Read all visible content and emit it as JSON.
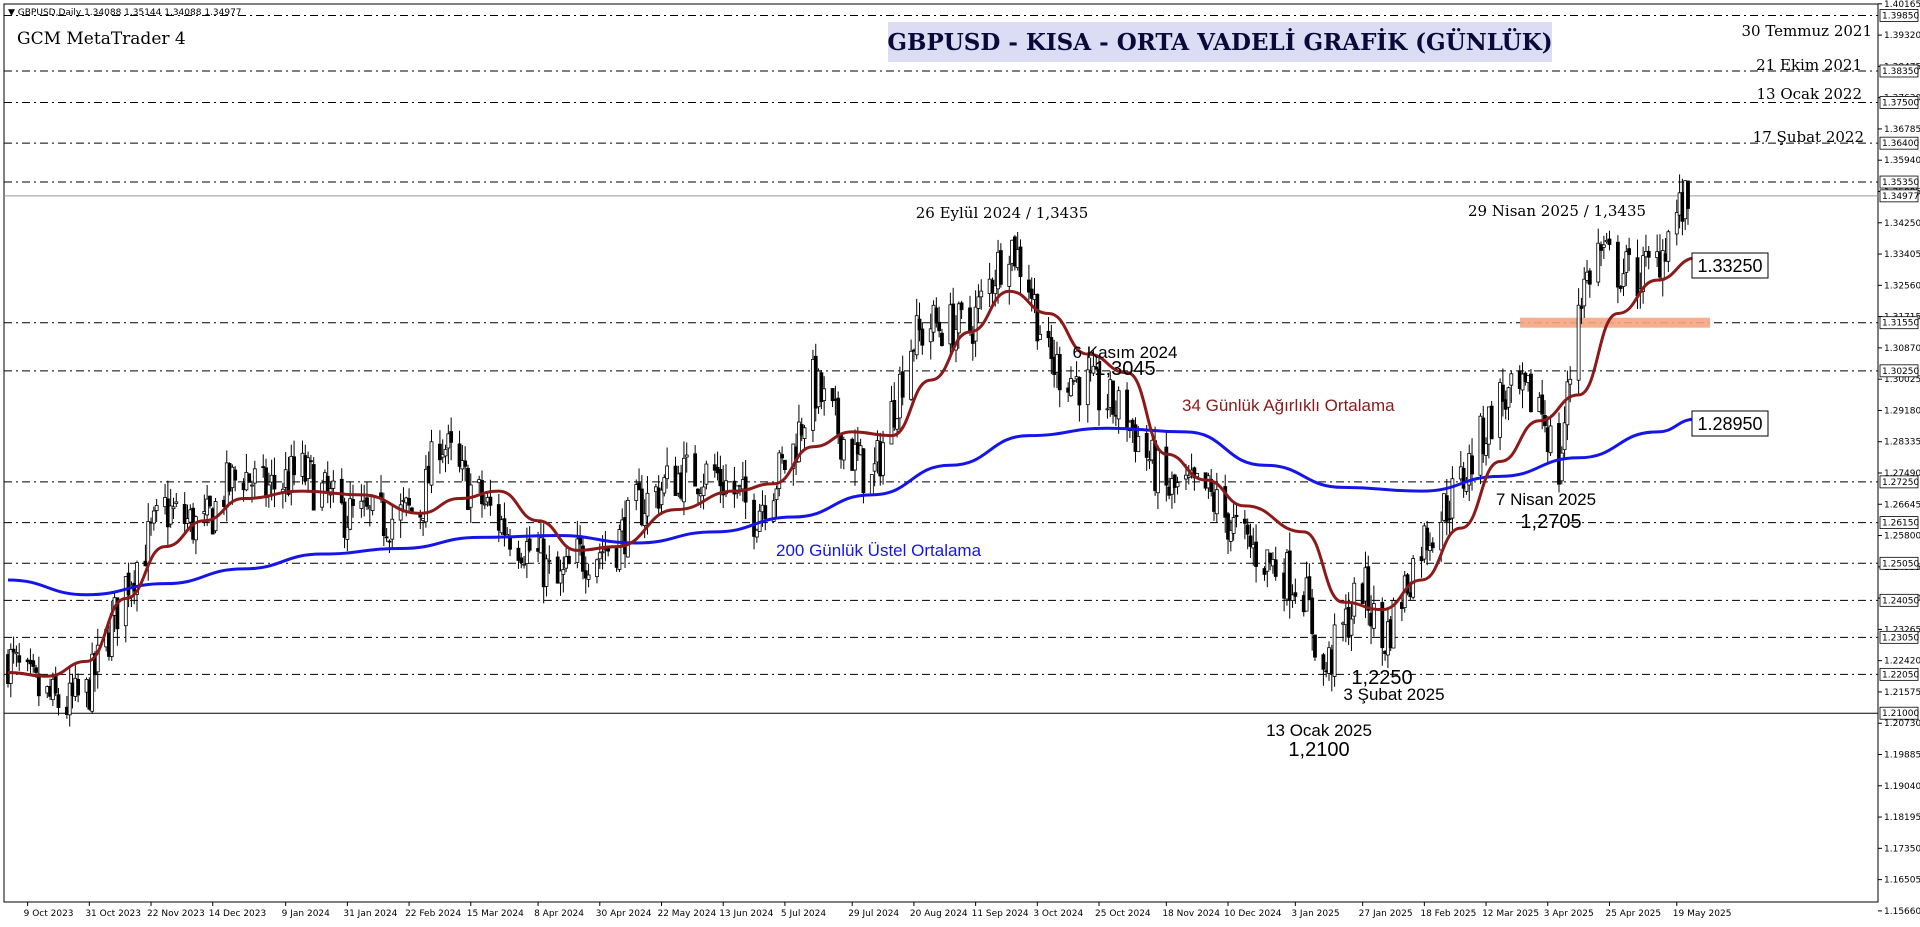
{
  "header": {
    "symbol_line": "▼ GBPUSD,Daily  1.34088 1.35144 1.34088 1.34977",
    "platform": "GCM MetaTrader 4",
    "title": "GBPUSD - KISA - ORTA VADELİ GRAFİK (GÜNLÜK)"
  },
  "colors": {
    "background": "#ffffff",
    "candle": "#000000",
    "ema200": "#1515e8",
    "wma34": "#8b1a1a",
    "zone": "#f4a582",
    "grid_dash": "#000000"
  },
  "chart_data": {
    "type": "candlestick",
    "symbol": "GBPUSD",
    "timeframe": "Daily",
    "ohlc_last": {
      "open": 1.34088,
      "high": 1.35144,
      "low": 1.34088,
      "close": 1.34977
    },
    "ylim": [
      1.159,
      1.4016
    ],
    "y_ticks": [
      "1.40165",
      "1.39320",
      "1.38475",
      "1.37630",
      "1.36785",
      "1.35940",
      "1.35095",
      "1.34250",
      "1.33405",
      "1.32560",
      "1.31715",
      "1.30870",
      "1.30025",
      "1.29180",
      "1.28335",
      "1.27490",
      "1.26645",
      "1.25800",
      "1.24955",
      "1.24110",
      "1.23265",
      "1.22420",
      "1.21575",
      "1.20730",
      "1.19885",
      "1.19040",
      "1.18195",
      "1.17350",
      "1.16505",
      "1.15660"
    ],
    "y_ticks_display": [
      "1.40165",
      "1.39320",
      "1.38475",
      "1.37630",
      "1.36785",
      "1.35940",
      "1.35095",
      "1.34250",
      "1.33405",
      "1.32560",
      "1.31715",
      "1.30870",
      "1.30025",
      "1.29180",
      "1.28335",
      "1.27490",
      "1.26645",
      "1.25800",
      "1.24955",
      "1.24110",
      "1.23265",
      "1.22420",
      "1.21575",
      "1.20730",
      "1.19885",
      "1.19040",
      "1.18195",
      "1.17350",
      "1.16505",
      "1.15660"
    ],
    "x_ticks": [
      "9 Oct 2023",
      "31 Oct 2023",
      "22 Nov 2023",
      "14 Dec 2023",
      "9 Jan 2024",
      "31 Jan 2024",
      "22 Feb 2024",
      "15 Mar 2024",
      "8 Apr 2024",
      "30 Apr 2024",
      "22 May 2024",
      "13 Jun 2024",
      "5 Jul 2024",
      "29 Jul 2024",
      "20 Aug 2024",
      "11 Sep 2024",
      "3 Oct 2024",
      "25 Oct 2024",
      "18 Nov 2024",
      "10 Dec 2024",
      "3 Jan 2025",
      "27 Jan 2025",
      "18 Feb 2025",
      "12 Mar 2025",
      "3 Apr 2025",
      "25 Apr 2025",
      "19 May 2025"
    ],
    "levels": [
      {
        "value": 1.3985,
        "label": "1.39850",
        "note": "30 Temmuz 2021"
      },
      {
        "value": 1.3835,
        "label": "1.38350",
        "note": "21 Ekim 2021"
      },
      {
        "value": 1.375,
        "label": "1.37500",
        "note": "13 Ocak 2022"
      },
      {
        "value": 1.364,
        "label": "1.36400",
        "note": "17 Şubat 2022"
      },
      {
        "value": 1.3535,
        "label": "1.35350",
        "note": ""
      },
      {
        "value": 1.3155,
        "label": "1.31550",
        "note": ""
      },
      {
        "value": 1.3025,
        "label": "1.30250",
        "note": ""
      },
      {
        "value": 1.2725,
        "label": "1.27250",
        "note": ""
      },
      {
        "value": 1.2615,
        "label": "1.26150",
        "note": ""
      },
      {
        "value": 1.2505,
        "label": "1.25050",
        "note": ""
      },
      {
        "value": 1.2405,
        "label": "1.24050",
        "note": ""
      },
      {
        "value": 1.2305,
        "label": "1.23050",
        "note": ""
      },
      {
        "value": 1.2205,
        "label": "1.22050",
        "note": ""
      },
      {
        "value": 1.21,
        "label": "1.21000",
        "note": ""
      }
    ],
    "current_price": {
      "value": 1.34977,
      "label": "1.34977"
    },
    "ma_labels": {
      "wma34_value": "1.33250",
      "ema200_value": "1.28950"
    },
    "wma34": {
      "name": "34 Günlük Ağırlıklı Ortalama",
      "x": [
        "2023-10-02",
        "2023-10-16",
        "2023-10-30",
        "2023-11-13",
        "2023-11-27",
        "2023-12-11",
        "2023-12-25",
        "2024-01-15",
        "2024-02-05",
        "2024-02-26",
        "2024-03-11",
        "2024-03-25",
        "2024-04-08",
        "2024-04-22",
        "2024-05-06",
        "2024-05-27",
        "2024-06-17",
        "2024-07-01",
        "2024-07-15",
        "2024-07-29",
        "2024-08-12",
        "2024-08-26",
        "2024-09-09",
        "2024-09-23",
        "2024-10-07",
        "2024-10-21",
        "2024-11-04",
        "2024-11-18",
        "2024-12-02",
        "2024-12-16",
        "2025-01-06",
        "2025-01-20",
        "2025-02-03",
        "2025-02-17",
        "2025-03-03",
        "2025-03-17",
        "2025-03-31",
        "2025-04-14",
        "2025-04-28",
        "2025-05-12",
        "2025-05-26"
      ],
      "values": [
        1.221,
        1.22,
        1.224,
        1.241,
        1.255,
        1.262,
        1.268,
        1.27,
        1.269,
        1.264,
        1.268,
        1.27,
        1.262,
        1.254,
        1.255,
        1.265,
        1.27,
        1.272,
        1.282,
        1.286,
        1.285,
        1.3,
        1.313,
        1.324,
        1.318,
        1.307,
        1.302,
        1.28,
        1.273,
        1.266,
        1.259,
        1.24,
        1.238,
        1.246,
        1.26,
        1.278,
        1.289,
        1.296,
        1.318,
        1.327,
        1.333
      ]
    },
    "ema200": {
      "name": "200 Günlük Üstel Ortalama",
      "x": [
        "2023-10-02",
        "2023-10-30",
        "2023-11-27",
        "2023-12-25",
        "2024-01-22",
        "2024-02-19",
        "2024-03-18",
        "2024-04-15",
        "2024-05-13",
        "2024-06-10",
        "2024-07-08",
        "2024-08-05",
        "2024-09-02",
        "2024-09-30",
        "2024-10-28",
        "2024-11-25",
        "2024-12-23",
        "2025-01-20",
        "2025-02-17",
        "2025-03-17",
        "2025-04-14",
        "2025-05-12",
        "2025-05-26"
      ],
      "values": [
        1.246,
        1.242,
        1.245,
        1.249,
        1.253,
        1.2545,
        1.2575,
        1.258,
        1.256,
        1.259,
        1.263,
        1.269,
        1.277,
        1.285,
        1.287,
        1.286,
        1.277,
        1.271,
        1.27,
        1.274,
        1.279,
        1.286,
        1.2895
      ]
    },
    "price_path": {
      "x": [
        "2023-10-02",
        "2023-10-09",
        "2023-10-16",
        "2023-10-23",
        "2023-10-30",
        "2023-11-06",
        "2023-11-13",
        "2023-11-20",
        "2023-11-27",
        "2023-12-04",
        "2023-12-11",
        "2023-12-18",
        "2023-12-25",
        "2024-01-01",
        "2024-01-15",
        "2024-01-29",
        "2024-02-12",
        "2024-02-26",
        "2024-03-04",
        "2024-03-11",
        "2024-03-25",
        "2024-04-08",
        "2024-04-15",
        "2024-04-22",
        "2024-05-06",
        "2024-05-13",
        "2024-05-27",
        "2024-06-10",
        "2024-06-24",
        "2024-07-08",
        "2024-07-15",
        "2024-07-29",
        "2024-08-05",
        "2024-08-19",
        "2024-08-26",
        "2024-09-09",
        "2024-09-23",
        "2024-09-30",
        "2024-10-07",
        "2024-10-21",
        "2024-11-04",
        "2024-11-18",
        "2024-12-02",
        "2024-12-16",
        "2025-01-06",
        "2025-01-13",
        "2025-01-27",
        "2025-02-03",
        "2025-02-17",
        "2025-03-03",
        "2025-03-17",
        "2025-03-31",
        "2025-04-07",
        "2025-04-14",
        "2025-04-21",
        "2025-04-28",
        "2025-05-05",
        "2025-05-12",
        "2025-05-19",
        "2025-05-26"
      ],
      "values": [
        1.225,
        1.218,
        1.214,
        1.212,
        1.215,
        1.229,
        1.245,
        1.255,
        1.265,
        1.262,
        1.26,
        1.27,
        1.275,
        1.27,
        1.275,
        1.264,
        1.262,
        1.265,
        1.285,
        1.274,
        1.262,
        1.252,
        1.244,
        1.252,
        1.256,
        1.265,
        1.274,
        1.275,
        1.264,
        1.281,
        1.299,
        1.28,
        1.272,
        1.31,
        1.315,
        1.314,
        1.338,
        1.327,
        1.305,
        1.298,
        1.29,
        1.27,
        1.27,
        1.256,
        1.244,
        1.22,
        1.245,
        1.228,
        1.256,
        1.272,
        1.295,
        1.295,
        1.275,
        1.322,
        1.335,
        1.33,
        1.328,
        1.332,
        1.345,
        1.3497
      ]
    },
    "annotations": [
      {
        "text": "26 Eylül 2024 / 1,3435"
      },
      {
        "text": "29 Nisan 2025 / 1,3435"
      },
      {
        "text": "6 Kasım 2024",
        "sub": "1,3045"
      },
      {
        "text": "7 Nisan 2025",
        "sub": "1,2705"
      },
      {
        "text": "1,2250",
        "sub": "3 Şubat 2025"
      },
      {
        "text": "13 Ocak 2025",
        "sub": "1,2100"
      }
    ],
    "zone": {
      "value": 1.3155
    }
  }
}
